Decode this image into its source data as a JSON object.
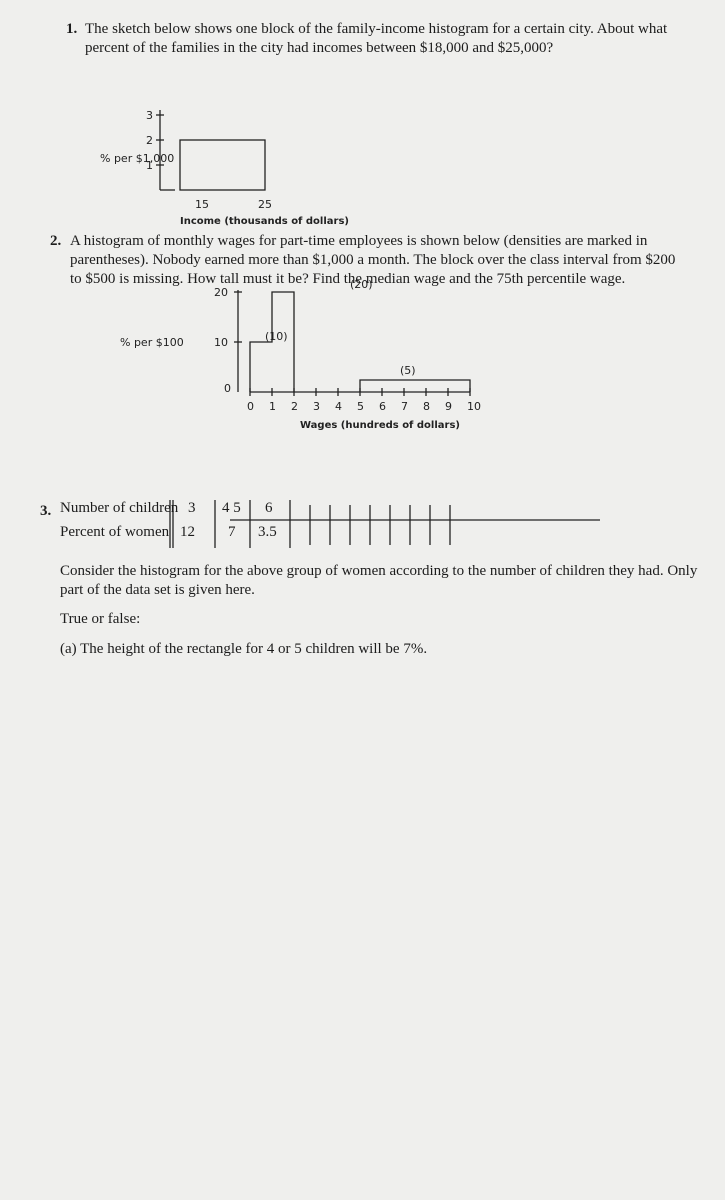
{
  "problems": [
    {
      "number": "1.",
      "text": "The sketch below shows one block of the family-income histogram for a certain city. About what percent of the families in the city had incomes between $18,000 and $25,000?",
      "figure": {
        "y_label": "% per $1,000",
        "y_ticks": [
          3,
          2,
          1
        ],
        "x_ticks": [
          15,
          25
        ],
        "x_label": "Income (thousands of dollars)"
      }
    },
    {
      "number": "2.",
      "text": "A histogram of monthly wages for part-time employees is shown below (densities are marked in parentheses). Nobody earned more than $1,000 a month. The block over the class interval from $200 to $500 is missing. How tall must it be? Find the median wage and the 75th percentile wage.",
      "figure": {
        "y_label": "% per $100",
        "y_ticks": [
          20,
          10,
          0
        ],
        "x_ticks": [
          0,
          1,
          2,
          3,
          4,
          5,
          6,
          7,
          8,
          9,
          10
        ],
        "block_labels": [
          "(20)",
          "(10)",
          "(5)"
        ],
        "x_label": "Wages (hundreds of dollars)"
      }
    },
    {
      "number": "3.",
      "table": {
        "rows": [
          [
            "Number of children",
            3,
            "4 5",
            6
          ],
          [
            "Percent of women",
            12,
            7,
            3.5
          ]
        ]
      },
      "text": "Consider the histogram for the above group of women according to the number of children they had. Only part of the data set is given here.",
      "prompt": "True or false:",
      "items": [
        "(a) The height of the rectangle for 4 or 5 children will be 7%."
      ]
    }
  ]
}
